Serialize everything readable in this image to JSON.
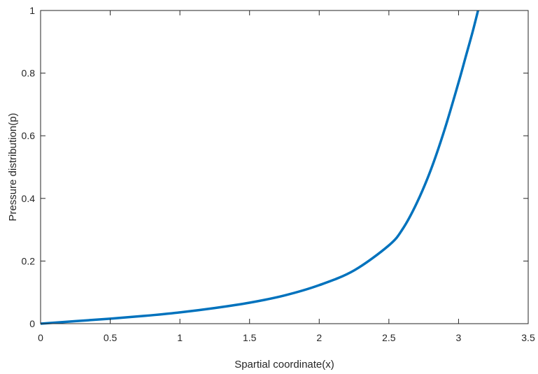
{
  "chart_data": {
    "type": "line",
    "title": "",
    "xlabel": "Spartial coordinate(x)",
    "ylabel": "Pressure distribution(p)",
    "xlim": [
      0,
      3.5
    ],
    "ylim": [
      0,
      1
    ],
    "xticks": [
      0,
      0.5,
      1,
      1.5,
      2,
      2.5,
      3,
      3.5
    ],
    "xtick_labels": [
      "0",
      "0.5",
      "1",
      "1.5",
      "2",
      "2.5",
      "3",
      "3.5"
    ],
    "yticks": [
      0,
      0.2,
      0.4,
      0.6,
      0.8,
      1
    ],
    "ytick_labels": [
      "0",
      "0.2",
      "0.4",
      "0.6",
      "0.8",
      "1"
    ],
    "grid": false,
    "series": [
      {
        "color": "#0072BD",
        "x": [
          0,
          0.25,
          0.5,
          0.75,
          1.0,
          1.25,
          1.5,
          1.75,
          2.0,
          2.25,
          2.5,
          2.6,
          2.7,
          2.8,
          2.9,
          3.0,
          3.05,
          3.1,
          3.14
        ],
        "y": [
          0,
          0.008,
          0.016,
          0.025,
          0.036,
          0.05,
          0.067,
          0.09,
          0.123,
          0.17,
          0.25,
          0.303,
          0.385,
          0.49,
          0.62,
          0.77,
          0.85,
          0.93,
          1.0
        ]
      }
    ]
  }
}
